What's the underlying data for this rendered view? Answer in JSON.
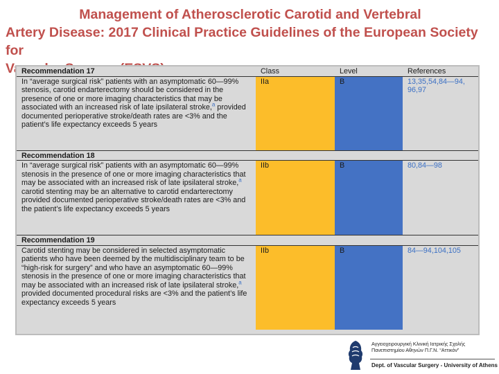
{
  "title": {
    "line1": "Management of Atherosclerotic Carotid and Vertebral",
    "line2": "Artery Disease: 2017 Clinical Practice Guidelines of the European Society for",
    "line3": "Vascular Surgery (ESVS)"
  },
  "table": {
    "headers": {
      "recommendation": "Recommendation 17",
      "class": "Class",
      "level": "Level",
      "references": "References"
    },
    "rows": [
      {
        "text_before": "In “average surgical risk” patients with an asymptomatic 60—99% stenosis, carotid endarterectomy should be considered in the presence of one or more imaging characteristics that may be associated with an increased risk of late ipsilateral stroke,",
        "sup": "a",
        "text_after": " provided documented perioperative stroke/death rates are <3% and the patient’s life expectancy exceeds 5 years",
        "class": "IIa",
        "level": "B",
        "references": "13,35,54,84—94, 96,97"
      },
      {
        "heading": "Recommendation 18",
        "text_before": "In “average surgical risk” patients with an asymptomatic 60—99% stenosis in the presence of one or more imaging characteristics that may be associated with an increased risk of late ipsilateral stroke,",
        "sup": "a",
        "text_after": " carotid stenting may be an alternative to carotid endarterectomy provided documented perioperative stroke/death rates are <3% and the patient’s life expectancy exceeds 5 years",
        "class": "IIb",
        "level": "B",
        "references": "80,84—98"
      },
      {
        "heading": "Recommendation 19",
        "text_before": "Carotid stenting may be considered in selected asymptomatic patients who have been deemed by the multidisciplinary team to be “high-risk for surgery” and who have an asymptomatic 60—99% stenosis in the presence of one or more imaging characteristics that may be associated with an increased risk of late ipsilateral stroke,",
        "sup": "a",
        "text_after": " provided documented procedural risks are <3% and the patient’s life expectancy exceeds 5 years",
        "class": "IIb",
        "level": "B",
        "references": "84—94,104,105"
      }
    ]
  },
  "footer": {
    "greek_line1": "Αγγειοχειρουργική Κλινική Ιατρικής Σχολής",
    "greek_line2": "Πανεπιστημίου Αθηνών Π.Γ.Ν. “Αττικόν”",
    "dept": "Dept. of Vascular Surgery - University of Athens",
    "logo_icon": "university-emblem-icon",
    "logo_color": "#1f3b6e"
  },
  "colors": {
    "title": "#c0504d",
    "class_cell": "#fcbd2a",
    "level_cell": "#4472c4",
    "references_text": "#3a6fc4",
    "table_bg": "#d9d9d9"
  }
}
